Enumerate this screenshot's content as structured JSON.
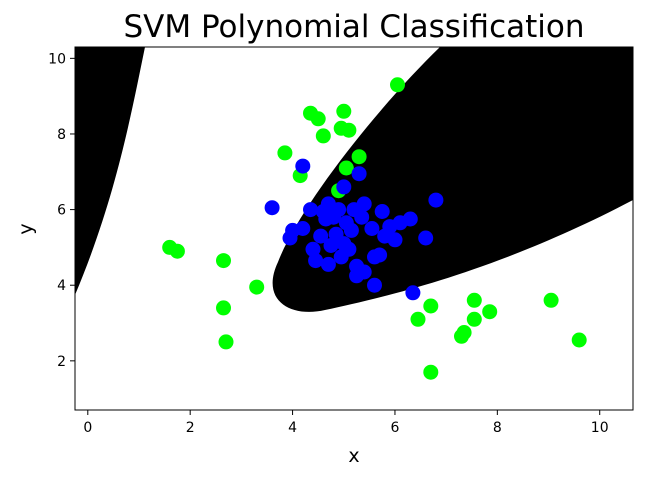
{
  "chart_data": {
    "type": "scatter",
    "title": "SVM Polynomial Classification",
    "xlabel": "x",
    "ylabel": "y",
    "xlim": [
      -0.25,
      10.65
    ],
    "ylim": [
      0.7,
      10.3
    ],
    "xticks": [
      0,
      2,
      4,
      6,
      8,
      10
    ],
    "yticks": [
      2,
      4,
      6,
      8,
      10
    ],
    "grid": false,
    "legend": "none",
    "decision_regions": {
      "positive_color": "#000000",
      "negative_color": "#ffffff",
      "description": "black = polynomial SVM region (main lobe centred near (7,7), small lobe at top-left)"
    },
    "series": [
      {
        "color": "#00ff00",
        "points": [
          [
            1.6,
            5.0
          ],
          [
            1.75,
            4.9
          ],
          [
            2.65,
            4.65
          ],
          [
            2.65,
            3.4
          ],
          [
            2.7,
            2.5
          ],
          [
            3.3,
            3.95
          ],
          [
            3.85,
            7.5
          ],
          [
            4.15,
            6.9
          ],
          [
            4.35,
            8.55
          ],
          [
            4.5,
            8.4
          ],
          [
            4.6,
            7.95
          ],
          [
            4.95,
            8.15
          ],
          [
            5.0,
            8.6
          ],
          [
            5.1,
            8.1
          ],
          [
            5.05,
            7.1
          ],
          [
            5.3,
            7.4
          ],
          [
            4.9,
            6.5
          ],
          [
            6.05,
            9.3
          ],
          [
            6.45,
            3.1
          ],
          [
            6.7,
            3.45
          ],
          [
            6.7,
            1.7
          ],
          [
            7.3,
            2.65
          ],
          [
            7.35,
            2.75
          ],
          [
            7.55,
            3.6
          ],
          [
            7.55,
            3.1
          ],
          [
            7.85,
            3.3
          ],
          [
            9.05,
            3.6
          ],
          [
            9.6,
            2.55
          ]
        ]
      },
      {
        "color": "#0000ff",
        "points": [
          [
            3.6,
            6.05
          ],
          [
            3.95,
            5.25
          ],
          [
            4.0,
            5.45
          ],
          [
            4.2,
            7.15
          ],
          [
            4.2,
            5.5
          ],
          [
            4.35,
            6.0
          ],
          [
            4.4,
            4.95
          ],
          [
            4.45,
            4.65
          ],
          [
            4.55,
            5.3
          ],
          [
            4.6,
            5.95
          ],
          [
            4.65,
            5.75
          ],
          [
            4.7,
            6.15
          ],
          [
            4.7,
            4.55
          ],
          [
            4.75,
            5.05
          ],
          [
            4.8,
            5.8
          ],
          [
            4.85,
            5.35
          ],
          [
            4.9,
            6.0
          ],
          [
            4.95,
            4.75
          ],
          [
            5.0,
            6.6
          ],
          [
            5.0,
            5.1
          ],
          [
            5.05,
            5.65
          ],
          [
            5.1,
            4.95
          ],
          [
            5.15,
            5.45
          ],
          [
            5.2,
            6.0
          ],
          [
            5.25,
            4.5
          ],
          [
            5.25,
            4.25
          ],
          [
            5.3,
            6.95
          ],
          [
            5.35,
            5.8
          ],
          [
            5.4,
            6.15
          ],
          [
            5.4,
            4.35
          ],
          [
            5.55,
            5.5
          ],
          [
            5.6,
            4.0
          ],
          [
            5.6,
            4.75
          ],
          [
            5.7,
            4.8
          ],
          [
            5.75,
            5.95
          ],
          [
            5.8,
            5.3
          ],
          [
            5.9,
            5.55
          ],
          [
            6.0,
            5.2
          ],
          [
            6.1,
            5.65
          ],
          [
            6.3,
            5.75
          ],
          [
            6.35,
            3.8
          ],
          [
            6.6,
            5.25
          ],
          [
            6.8,
            6.25
          ]
        ]
      }
    ]
  }
}
